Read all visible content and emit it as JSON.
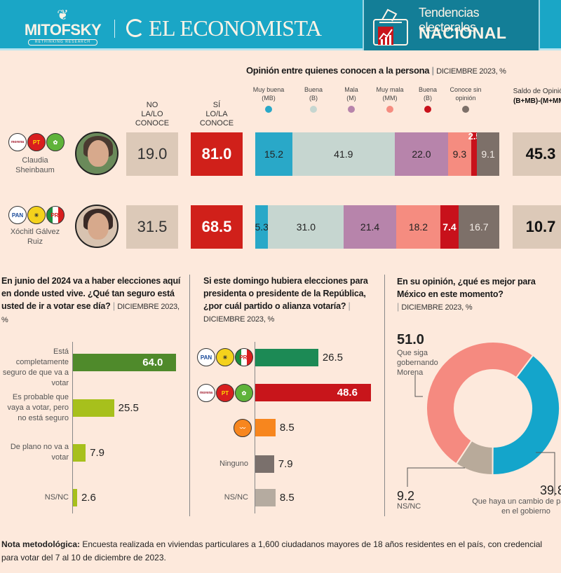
{
  "header": {
    "mitofsky": "MITOFSKY",
    "mitofsky_tag": "RETHINKING RESEARCH",
    "economista": "EL ECONOMISTA",
    "tendencias": "Tendencias electorales",
    "nacional": "NACIONAL",
    "colors": {
      "bg": "#1aa6c6",
      "box": "#137e97"
    }
  },
  "opinion": {
    "title": "Opinión entre quienes conocen a la persona",
    "date": "DICIEMBRE 2023, %",
    "legend": [
      {
        "label": "Muy buena",
        "abbr": "(MB)",
        "color": "#29a8c8"
      },
      {
        "label": "Buena",
        "abbr": "(B)",
        "color": "#c6d6d0"
      },
      {
        "label": "Mala",
        "abbr": "(M)",
        "color": "#b784ab"
      },
      {
        "label": "Muy mala",
        "abbr": "(MM)",
        "color": "#f58c80"
      },
      {
        "label": "Buena",
        "abbr": "(B)",
        "color": "#c8111b"
      },
      {
        "label": "Conoce sin",
        "abbr": "opinión",
        "color": "#7d7069"
      }
    ],
    "saldo_label": "Saldo de Opinión",
    "saldo_formula": "(B+MB)-(M+MM)",
    "col_no_line1": "NO",
    "col_no_line2": "LA/LO CONOCE",
    "col_si_line1": "SÍ",
    "col_si_line2": "LO/LA CONOCE",
    "candidates": [
      {
        "name_line1": "Claudia",
        "name_line2": "Sheinbaum",
        "parties": [
          "morena",
          "PT",
          "PVEM"
        ],
        "no_conoce": "19.0",
        "si_conoce": "81.0",
        "saldo": "45.3"
      },
      {
        "name_line1": "Xóchitl Gálvez",
        "name_line2": "Ruiz",
        "parties": [
          "PAN",
          "PRD",
          "PRI"
        ],
        "no_conoce": "31.5",
        "si_conoce": "68.5",
        "saldo": "10.7"
      }
    ]
  },
  "q_vote": {
    "question": "En junio del 2024 va a haber elecciones aquí en donde usted vive. ¿Qué tan seguro está usted de ir a votar ese día?",
    "date": "DICIEMBRE 2023, %",
    "items": [
      {
        "label": "Está completamente seguro de que va a votar",
        "value": "64.0"
      },
      {
        "label": "Es probable que vaya a votar, pero no está seguro",
        "value": "25.5"
      },
      {
        "label": "De plano no va a votar",
        "value": "7.9"
      },
      {
        "label": "NS/NC",
        "value": "2.6"
      }
    ]
  },
  "q_party": {
    "question": "Si este domingo hubiera elecciones para presidenta o presidente de la República, ¿por cuál partido o alianza votaría?",
    "date": "DICIEMBRE 2023, %",
    "items": [
      {
        "label": "PAN-PRD-PRI",
        "value": "26.5"
      },
      {
        "label": "Morena-PT-PVEM",
        "value": "48.6"
      },
      {
        "label": "MC",
        "value": "8.5"
      },
      {
        "label": "Ninguno",
        "value": "7.9"
      },
      {
        "label": "NS/NC",
        "value": "8.5"
      }
    ]
  },
  "q_mexico": {
    "question": "En su opinión, ¿qué es mejor para México en este momento?",
    "date": "DICIEMBRE 2023, %",
    "morena_value": "51.0",
    "morena_label": "Que siga gobernando Morena",
    "cambio_value": "39.8",
    "cambio_label": "Que haya un cambio de partido en el gobierno",
    "nsnc_value": "9.2",
    "nsnc_label": "NS/NC"
  },
  "footnote": {
    "bold": "Nota metodológica:",
    "text": " Encuesta realizada en viviendas particulares a 1,600 ciudadanos mayores de 18 años residentes en el país, con credencial para votar del 7 al 10 de diciembre de 2023."
  },
  "chart_data": [
    {
      "type": "bar",
      "title": "Opinión entre quienes conocen a la persona | DICIEMBRE 2023, %",
      "stacked": true,
      "orientation": "horizontal",
      "categories": [
        "Claudia Sheinbaum",
        "Xóchitl Gálvez Ruiz"
      ],
      "series": [
        {
          "name": "Muy buena (MB)",
          "color": "#29a8c8",
          "values": [
            15.2,
            5.3
          ]
        },
        {
          "name": "Buena (B)",
          "color": "#c6d6d0",
          "values": [
            41.9,
            31.0
          ]
        },
        {
          "name": "Mala (M)",
          "color": "#b784ab",
          "values": [
            22.0,
            21.4
          ]
        },
        {
          "name": "Muy mala (MM)",
          "color": "#f58c80",
          "values": [
            9.3,
            18.2
          ]
        },
        {
          "name": "Buena (B)",
          "color": "#c8111b",
          "values": [
            2.5,
            7.4
          ]
        },
        {
          "name": "Conoce sin opinión",
          "color": "#7d7069",
          "values": [
            9.1,
            16.7
          ]
        }
      ],
      "no_conoce": [
        19.0,
        31.5
      ],
      "si_conoce": [
        81.0,
        68.5
      ],
      "saldo": [
        45.3,
        10.7
      ]
    },
    {
      "type": "bar",
      "orientation": "horizontal",
      "title": "En junio del 2024 va a haber elecciones aquí en donde usted vive. ¿Qué tan seguro está usted de ir a votar ese día? | DICIEMBRE 2023, %",
      "categories": [
        "Está completamente seguro de que va a votar",
        "Es probable que vaya a votar, pero no está seguro",
        "De plano no va a votar",
        "NS/NC"
      ],
      "values": [
        64.0,
        25.5,
        7.9,
        2.6
      ],
      "colors": [
        "#4f8a2b",
        "#a7c01c",
        "#a7c01c",
        "#a7c01c"
      ]
    },
    {
      "type": "bar",
      "orientation": "horizontal",
      "title": "Si este domingo hubiera elecciones para presidenta o presidente de la República, ¿por cuál partido o alianza votaría? | DICIEMBRE 2023, %",
      "categories": [
        "PAN-PRD-PRI",
        "Morena-PT-PVEM",
        "MC",
        "Ninguno",
        "NS/NC"
      ],
      "values": [
        26.5,
        48.6,
        8.5,
        7.9,
        8.5
      ],
      "colors": [
        "#1c8a55",
        "#c8151b",
        "#f7861e",
        "#7a706c",
        "#b5aba0"
      ]
    },
    {
      "type": "pie",
      "donut": true,
      "title": "En su opinión, ¿qué es mejor para México en este momento? | DICIEMBRE 2023, %",
      "categories": [
        "Que haya un cambio de partido en el gobierno",
        "NS/NC",
        "Que siga gobernando Morena"
      ],
      "values": [
        39.8,
        9.2,
        51.0
      ],
      "colors": [
        "#14a5cb",
        "#b8aa9a",
        "#f58a80"
      ]
    }
  ]
}
